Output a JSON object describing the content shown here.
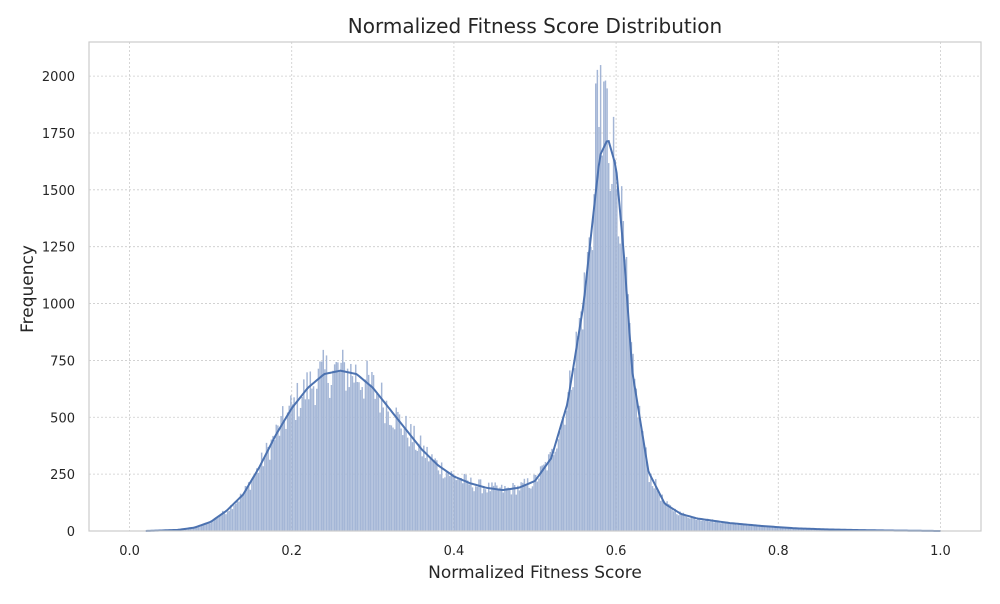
{
  "chart_data": {
    "type": "histogram",
    "title": "Normalized Fitness Score Distribution",
    "xlabel": "Normalized Fitness Score",
    "ylabel": "Frequency",
    "xlim": [
      -0.05,
      1.05
    ],
    "ylim": [
      0,
      2150
    ],
    "xticks": [
      0.0,
      0.2,
      0.4,
      0.6,
      0.8,
      1.0
    ],
    "xtick_labels": [
      "0.0",
      "0.2",
      "0.4",
      "0.6",
      "0.8",
      "1.0"
    ],
    "yticks": [
      0,
      250,
      500,
      750,
      1000,
      1250,
      1500,
      1750,
      2000
    ],
    "ytick_labels": [
      "0",
      "250",
      "500",
      "750",
      "1000",
      "1250",
      "1500",
      "1750",
      "2000"
    ],
    "grid": true,
    "kde": true,
    "bins": 500,
    "range": [
      0.0,
      1.0
    ],
    "x": [
      0.02,
      0.06,
      0.08,
      0.1,
      0.12,
      0.14,
      0.16,
      0.18,
      0.2,
      0.22,
      0.24,
      0.26,
      0.28,
      0.3,
      0.32,
      0.34,
      0.36,
      0.38,
      0.4,
      0.42,
      0.44,
      0.46,
      0.48,
      0.5,
      0.52,
      0.54,
      0.56,
      0.57,
      0.58,
      0.59,
      0.6,
      0.61,
      0.62,
      0.64,
      0.66,
      0.68,
      0.7,
      0.74,
      0.78,
      0.82,
      0.86,
      0.9,
      0.94,
      1.0
    ],
    "values": [
      0,
      5,
      15,
      40,
      90,
      160,
      280,
      420,
      540,
      630,
      690,
      705,
      690,
      630,
      540,
      450,
      360,
      290,
      240,
      210,
      190,
      180,
      190,
      220,
      320,
      560,
      1000,
      1330,
      1650,
      1720,
      1600,
      1200,
      700,
      260,
      120,
      75,
      55,
      35,
      22,
      12,
      7,
      4,
      2,
      0
    ],
    "kde_values": [
      0,
      5,
      15,
      40,
      90,
      160,
      280,
      420,
      540,
      630,
      690,
      705,
      690,
      630,
      540,
      450,
      360,
      290,
      240,
      210,
      190,
      180,
      190,
      220,
      320,
      560,
      1000,
      1330,
      1650,
      1725,
      1600,
      1200,
      700,
      260,
      120,
      75,
      55,
      35,
      22,
      12,
      7,
      4,
      2,
      0
    ],
    "colors": {
      "bars": "#a4b6d6",
      "kde": "#4c72b0"
    }
  }
}
